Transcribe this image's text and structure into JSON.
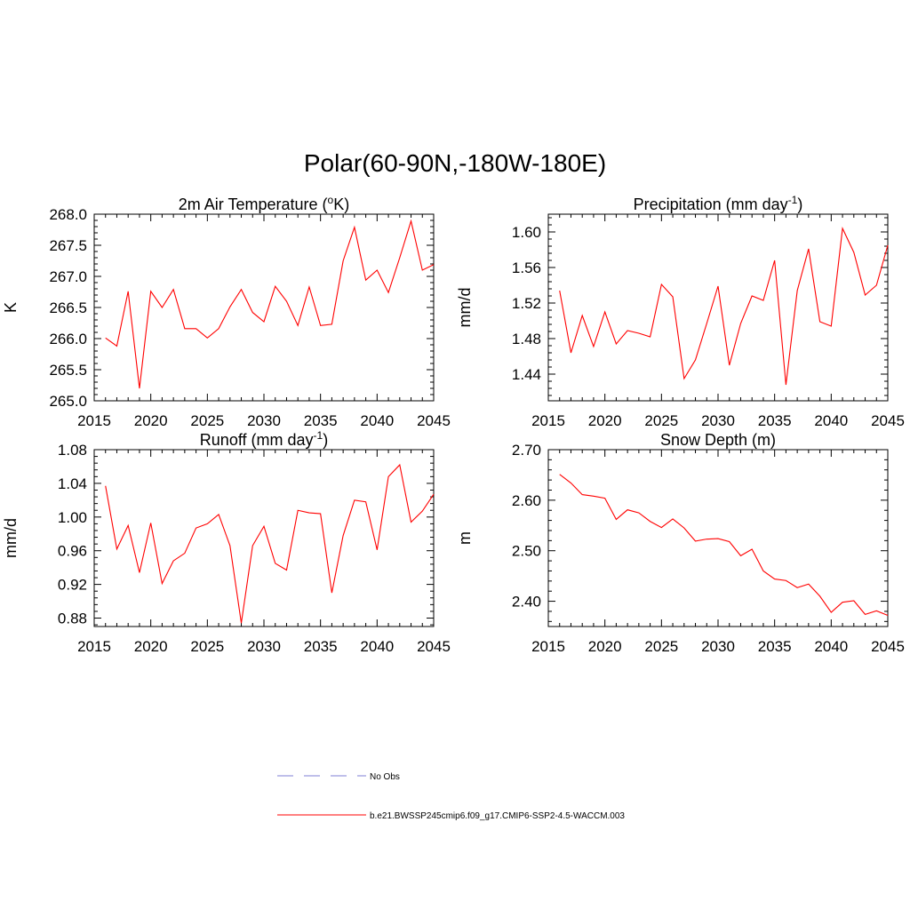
{
  "title": "Polar(60-90N,-180W-180E)",
  "colors": {
    "series": "#ff0000",
    "no_obs": "#9999dd",
    "axis": "#000000"
  },
  "legend": {
    "no_obs_label": "No Obs",
    "model_label": "b.e21.BWSSP245cmip6.f09_g17.CMIP6-SSP2-4.5-WACCM.003"
  },
  "chart_data": [
    {
      "type": "line",
      "title_main": "2m Air Temperature (",
      "title_sup": "o",
      "title_end": "K)",
      "xlabel": "",
      "ylabel": "K",
      "xlim": [
        2015,
        2045
      ],
      "ylim": [
        265.0,
        268.0
      ],
      "xticks": [
        2015,
        2020,
        2025,
        2030,
        2035,
        2040,
        2045
      ],
      "yticks": [
        265.0,
        265.5,
        266.0,
        266.5,
        267.0,
        267.5,
        268.0
      ],
      "ytick_labels": [
        "265.0",
        "265.5",
        "266.0",
        "266.5",
        "267.0",
        "267.5",
        "268.0"
      ],
      "series": [
        {
          "name": "b.e21.BWSSP245cmip6.f09_g17.CMIP6-SSP2-4.5-WACCM.003",
          "x": [
            2016,
            2017,
            2018,
            2019,
            2020,
            2021,
            2022,
            2023,
            2024,
            2025,
            2026,
            2027,
            2028,
            2029,
            2030,
            2031,
            2032,
            2033,
            2034,
            2035,
            2036,
            2037,
            2038,
            2039,
            2040,
            2041,
            2042,
            2043,
            2044,
            2045
          ],
          "values": [
            266.01,
            265.88,
            266.76,
            265.2,
            266.76,
            266.5,
            266.79,
            266.16,
            266.16,
            266.01,
            266.16,
            266.51,
            266.79,
            266.42,
            266.27,
            266.84,
            266.6,
            266.21,
            266.83,
            266.21,
            266.23,
            267.25,
            267.79,
            266.94,
            267.1,
            266.74,
            267.3,
            267.89,
            267.1,
            267.19
          ]
        }
      ]
    },
    {
      "type": "line",
      "title_main": "Precipitation (mm day",
      "title_sup": "-1",
      "title_end": ")",
      "xlabel": "",
      "ylabel": "mm/d",
      "xlim": [
        2015,
        2045
      ],
      "ylim": [
        1.41,
        1.62
      ],
      "xticks": [
        2015,
        2020,
        2025,
        2030,
        2035,
        2040,
        2045
      ],
      "yticks": [
        1.44,
        1.48,
        1.52,
        1.56,
        1.6
      ],
      "ytick_labels": [
        "1.44",
        "1.48",
        "1.52",
        "1.56",
        "1.60"
      ],
      "series": [
        {
          "name": "b.e21.BWSSP245cmip6.f09_g17.CMIP6-SSP2-4.5-WACCM.003",
          "x": [
            2016,
            2017,
            2018,
            2019,
            2020,
            2021,
            2022,
            2023,
            2024,
            2025,
            2026,
            2027,
            2028,
            2029,
            2030,
            2031,
            2032,
            2033,
            2034,
            2035,
            2036,
            2037,
            2038,
            2039,
            2040,
            2041,
            2042,
            2043,
            2044,
            2045
          ],
          "values": [
            1.534,
            1.464,
            1.506,
            1.471,
            1.51,
            1.474,
            1.489,
            1.486,
            1.482,
            1.541,
            1.527,
            1.435,
            1.456,
            1.497,
            1.539,
            1.45,
            1.497,
            1.528,
            1.523,
            1.568,
            1.428,
            1.534,
            1.581,
            1.499,
            1.494,
            1.604,
            1.577,
            1.529,
            1.54,
            1.585
          ]
        }
      ]
    },
    {
      "type": "line",
      "title_main": "Runoff (mm day",
      "title_sup": "-1",
      "title_end": ")",
      "xlabel": "",
      "ylabel": "mm/d",
      "xlim": [
        2015,
        2045
      ],
      "ylim": [
        0.87,
        1.08
      ],
      "xticks": [
        2015,
        2020,
        2025,
        2030,
        2035,
        2040,
        2045
      ],
      "yticks": [
        0.88,
        0.92,
        0.96,
        1.0,
        1.04,
        1.08
      ],
      "ytick_labels": [
        "0.88",
        "0.92",
        "0.96",
        "1.00",
        "1.04",
        "1.08"
      ],
      "series": [
        {
          "name": "b.e21.BWSSP245cmip6.f09_g17.CMIP6-SSP2-4.5-WACCM.003",
          "x": [
            2016,
            2017,
            2018,
            2019,
            2020,
            2021,
            2022,
            2023,
            2024,
            2025,
            2026,
            2027,
            2028,
            2029,
            2030,
            2031,
            2032,
            2033,
            2034,
            2035,
            2036,
            2037,
            2038,
            2039,
            2040,
            2041,
            2042,
            2043,
            2044,
            2045
          ],
          "values": [
            1.037,
            0.962,
            0.99,
            0.934,
            0.993,
            0.921,
            0.948,
            0.957,
            0.987,
            0.992,
            1.003,
            0.966,
            0.874,
            0.966,
            0.989,
            0.945,
            0.937,
            1.008,
            1.005,
            1.004,
            0.91,
            0.978,
            1.02,
            1.018,
            0.961,
            1.048,
            1.062,
            0.994,
            1.007,
            1.027
          ]
        }
      ]
    },
    {
      "type": "line",
      "title_main": "Snow Depth (m)",
      "title_sup": "",
      "title_end": "",
      "xlabel": "",
      "ylabel": "m",
      "xlim": [
        2015,
        2045
      ],
      "ylim": [
        2.35,
        2.7
      ],
      "xticks": [
        2015,
        2020,
        2025,
        2030,
        2035,
        2040,
        2045
      ],
      "yticks": [
        2.4,
        2.5,
        2.6,
        2.7
      ],
      "ytick_labels": [
        "2.40",
        "2.50",
        "2.60",
        "2.70"
      ],
      "series": [
        {
          "name": "b.e21.BWSSP245cmip6.f09_g17.CMIP6-SSP2-4.5-WACCM.003",
          "x": [
            2016,
            2017,
            2018,
            2019,
            2020,
            2021,
            2022,
            2023,
            2024,
            2025,
            2026,
            2027,
            2028,
            2029,
            2030,
            2031,
            2032,
            2033,
            2034,
            2035,
            2036,
            2037,
            2038,
            2039,
            2040,
            2041,
            2042,
            2043,
            2044,
            2045
          ],
          "values": [
            2.651,
            2.634,
            2.611,
            2.608,
            2.604,
            2.562,
            2.581,
            2.575,
            2.558,
            2.546,
            2.563,
            2.545,
            2.519,
            2.523,
            2.524,
            2.518,
            2.49,
            2.503,
            2.46,
            2.444,
            2.441,
            2.427,
            2.434,
            2.41,
            2.378,
            2.398,
            2.401,
            2.374,
            2.381,
            2.372
          ]
        }
      ]
    }
  ]
}
